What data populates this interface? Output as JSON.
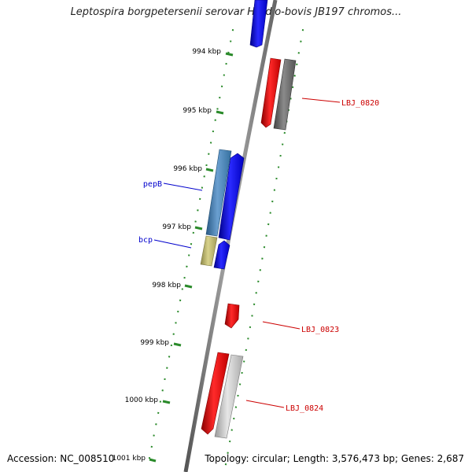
{
  "title": "Leptospira borgpetersenii serovar Hardjo-bovis JB197 chromos...",
  "footer": {
    "accession": "Accession: NC_008510",
    "topology": "Topology: circular; Length: 3,576,473 bp; Genes: 2,687"
  },
  "ticks": [
    {
      "label": "994 kbp"
    },
    {
      "label": "995 kbp"
    },
    {
      "label": "996 kbp"
    },
    {
      "label": "997 kbp"
    },
    {
      "label": "998 kbp"
    },
    {
      "label": "999 kbp"
    },
    {
      "label": "1000 kbp"
    },
    {
      "label": "1001 kbp"
    }
  ],
  "gene_labels": [
    {
      "name": "LBJ_0820",
      "color": "#cc0000"
    },
    {
      "name": "pepB",
      "color": "#0000cc"
    },
    {
      "name": "bcp",
      "color": "#0000cc"
    },
    {
      "name": "LBJ_0823",
      "color": "#cc0000"
    },
    {
      "name": "LBJ_0824",
      "color": "#cc0000"
    }
  ],
  "colors": {
    "backbone": "#808080",
    "tick": "#2a8a2a",
    "forward_cds": "#0000ee",
    "reverse_cds": "#ee0000",
    "rna_gray": "#666666",
    "light_gray": "#bbbbbb",
    "steel_blue": "#4682b4",
    "khaki": "#bdb76b"
  }
}
